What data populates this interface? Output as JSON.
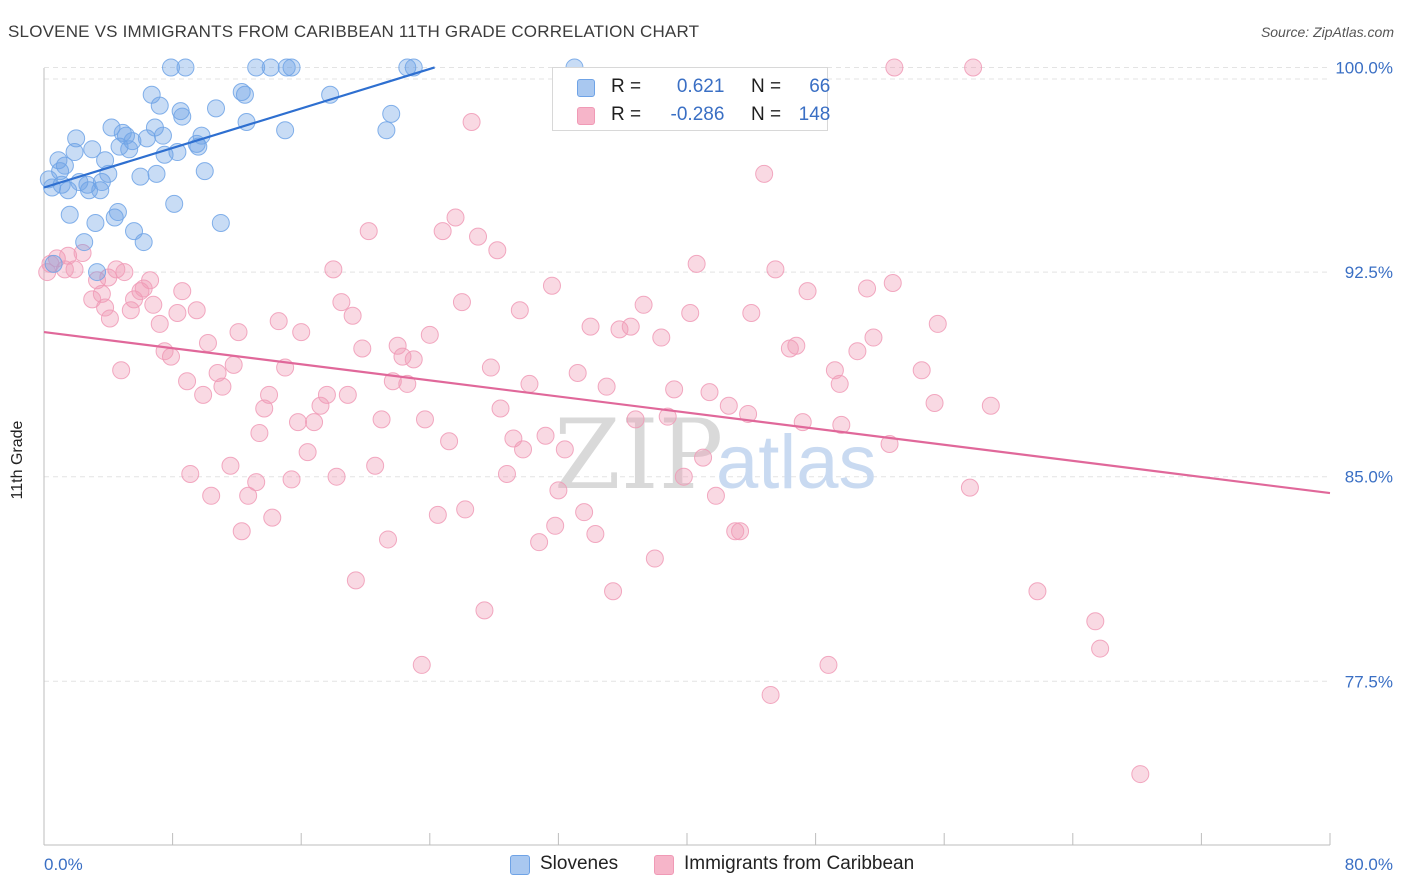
{
  "header": {
    "title": "SLOVENE VS IMMIGRANTS FROM CARIBBEAN 11TH GRADE CORRELATION CHART",
    "source": "Source: ZipAtlas.com"
  },
  "watermark": {
    "zip": "ZIP",
    "atlas": "atlas"
  },
  "legend": {
    "rows": [
      {
        "r_label": "R =",
        "r_value": "0.621",
        "n_label": "N =",
        "n_value": "66",
        "color": "#a9c8f0"
      },
      {
        "r_label": "R =",
        "r_value": "-0.286",
        "n_label": "N =",
        "n_value": "148",
        "color": "#f6b5c9"
      }
    ],
    "bottom": [
      {
        "label": "Slovenes",
        "color": "#a9c8f0"
      },
      {
        "label": "Immigrants from Caribbean",
        "color": "#f6b5c9"
      }
    ]
  },
  "chart_data": {
    "type": "scatter",
    "title": "SLOVENE VS IMMIGRANTS FROM CARIBBEAN 11TH GRADE CORRELATION CHART",
    "xlabel": "",
    "ylabel": "11th Grade",
    "xlim": [
      0,
      80
    ],
    "ylim": [
      71.5,
      100.2
    ],
    "x_tick_labels": [
      "0.0%",
      "80.0%"
    ],
    "y_ticks": [
      77.5,
      85.0,
      92.5,
      100.0
    ],
    "y_tick_labels": [
      "77.5%",
      "85.0%",
      "92.5%",
      "100.0%"
    ],
    "grid": true,
    "legend_position": "top-center",
    "colors": {
      "slovenes": "#6fa3e6",
      "slovenes_line": "#2e6fd0",
      "caribbean": "#f09ab6",
      "caribbean_line": "#e0689a",
      "tick_text": "#3a6fc4"
    },
    "series": [
      {
        "name": "Slovenes",
        "trend": {
          "x": [
            0.0,
            24.3
          ],
          "y": [
            95.6,
            100.0
          ]
        },
        "points": [
          [
            0.3,
            95.9
          ],
          [
            0.5,
            95.6
          ],
          [
            0.6,
            92.8
          ],
          [
            0.9,
            96.6
          ],
          [
            1.0,
            96.2
          ],
          [
            1.1,
            95.7
          ],
          [
            1.3,
            96.4
          ],
          [
            1.5,
            95.5
          ],
          [
            1.6,
            94.6
          ],
          [
            1.9,
            96.9
          ],
          [
            2.0,
            97.4
          ],
          [
            2.2,
            95.8
          ],
          [
            2.5,
            93.6
          ],
          [
            2.7,
            95.7
          ],
          [
            2.8,
            95.5
          ],
          [
            3.0,
            97.0
          ],
          [
            3.2,
            94.3
          ],
          [
            3.3,
            92.5
          ],
          [
            3.5,
            95.5
          ],
          [
            3.6,
            95.8
          ],
          [
            3.8,
            96.6
          ],
          [
            4.0,
            96.1
          ],
          [
            4.2,
            97.8
          ],
          [
            4.4,
            94.5
          ],
          [
            4.6,
            94.7
          ],
          [
            4.7,
            97.1
          ],
          [
            4.9,
            97.6
          ],
          [
            5.1,
            97.5
          ],
          [
            5.3,
            97.0
          ],
          [
            5.5,
            97.3
          ],
          [
            5.6,
            94.0
          ],
          [
            6.0,
            96.0
          ],
          [
            6.2,
            93.6
          ],
          [
            6.4,
            97.4
          ],
          [
            6.7,
            99.0
          ],
          [
            6.9,
            97.8
          ],
          [
            7.0,
            96.1
          ],
          [
            7.2,
            98.6
          ],
          [
            7.4,
            97.5
          ],
          [
            7.5,
            96.8
          ],
          [
            7.9,
            100.0
          ],
          [
            8.1,
            95.0
          ],
          [
            8.3,
            96.9
          ],
          [
            8.5,
            98.4
          ],
          [
            8.6,
            98.2
          ],
          [
            8.8,
            100.0
          ],
          [
            9.6,
            97.1
          ],
          [
            9.8,
            97.5
          ],
          [
            10.0,
            96.2
          ],
          [
            10.7,
            98.5
          ],
          [
            11.0,
            94.3
          ],
          [
            12.3,
            99.1
          ],
          [
            12.5,
            99.0
          ],
          [
            12.6,
            98.0
          ],
          [
            13.2,
            100.0
          ],
          [
            14.1,
            100.0
          ],
          [
            15.0,
            97.7
          ],
          [
            15.1,
            100.0
          ],
          [
            15.4,
            100.0
          ],
          [
            17.8,
            99.0
          ],
          [
            21.3,
            97.7
          ],
          [
            21.6,
            98.3
          ],
          [
            22.6,
            100.0
          ],
          [
            23.0,
            100.0
          ],
          [
            33.0,
            100.0
          ],
          [
            9.5,
            97.2
          ]
        ]
      },
      {
        "name": "Immigrants from Caribbean",
        "trend": {
          "x": [
            0.0,
            80.0
          ],
          "y": [
            90.3,
            84.4
          ]
        },
        "points": [
          [
            0.2,
            92.5
          ],
          [
            0.4,
            92.8
          ],
          [
            0.8,
            93.0
          ],
          [
            1.3,
            92.6
          ],
          [
            1.5,
            93.1
          ],
          [
            1.9,
            92.6
          ],
          [
            2.4,
            93.2
          ],
          [
            3.0,
            91.5
          ],
          [
            3.3,
            92.2
          ],
          [
            3.6,
            91.7
          ],
          [
            3.8,
            91.2
          ],
          [
            4.1,
            90.8
          ],
          [
            4.5,
            92.6
          ],
          [
            4.8,
            88.9
          ],
          [
            5.0,
            92.5
          ],
          [
            5.4,
            91.1
          ],
          [
            5.6,
            91.5
          ],
          [
            6.0,
            91.8
          ],
          [
            6.2,
            91.9
          ],
          [
            6.6,
            92.2
          ],
          [
            6.8,
            91.3
          ],
          [
            7.2,
            90.6
          ],
          [
            7.5,
            89.6
          ],
          [
            7.9,
            89.4
          ],
          [
            8.3,
            91.0
          ],
          [
            8.6,
            91.8
          ],
          [
            8.9,
            88.5
          ],
          [
            9.1,
            85.1
          ],
          [
            9.5,
            91.1
          ],
          [
            9.9,
            88.0
          ],
          [
            10.2,
            89.9
          ],
          [
            10.4,
            84.3
          ],
          [
            10.8,
            88.8
          ],
          [
            11.1,
            88.3
          ],
          [
            11.6,
            85.4
          ],
          [
            11.8,
            89.1
          ],
          [
            12.1,
            90.3
          ],
          [
            12.3,
            83.0
          ],
          [
            12.7,
            84.3
          ],
          [
            13.2,
            84.8
          ],
          [
            13.4,
            86.6
          ],
          [
            13.7,
            87.5
          ],
          [
            14.0,
            88.0
          ],
          [
            14.2,
            83.5
          ],
          [
            14.6,
            90.7
          ],
          [
            15.0,
            89.0
          ],
          [
            15.4,
            84.9
          ],
          [
            15.8,
            87.0
          ],
          [
            16.0,
            90.3
          ],
          [
            16.4,
            85.9
          ],
          [
            16.8,
            87.0
          ],
          [
            17.2,
            87.6
          ],
          [
            17.6,
            88.0
          ],
          [
            18.0,
            92.6
          ],
          [
            18.2,
            85.0
          ],
          [
            18.5,
            91.4
          ],
          [
            18.9,
            88.0
          ],
          [
            19.2,
            90.9
          ],
          [
            19.4,
            81.2
          ],
          [
            19.8,
            89.7
          ],
          [
            20.2,
            94.0
          ],
          [
            20.6,
            85.4
          ],
          [
            21.0,
            87.1
          ],
          [
            21.4,
            82.7
          ],
          [
            21.7,
            88.5
          ],
          [
            22.0,
            89.8
          ],
          [
            22.3,
            89.4
          ],
          [
            22.6,
            88.4
          ],
          [
            23.0,
            89.3
          ],
          [
            23.5,
            78.1
          ],
          [
            23.7,
            87.1
          ],
          [
            24.0,
            90.2
          ],
          [
            24.5,
            83.6
          ],
          [
            24.8,
            94.0
          ],
          [
            25.2,
            86.3
          ],
          [
            25.6,
            94.5
          ],
          [
            26.0,
            91.4
          ],
          [
            26.2,
            83.8
          ],
          [
            26.6,
            98.0
          ],
          [
            27.0,
            93.8
          ],
          [
            27.4,
            80.1
          ],
          [
            27.8,
            89.0
          ],
          [
            28.2,
            93.3
          ],
          [
            28.4,
            87.5
          ],
          [
            28.8,
            85.1
          ],
          [
            29.2,
            86.4
          ],
          [
            29.6,
            91.1
          ],
          [
            29.8,
            86.0
          ],
          [
            30.2,
            88.4
          ],
          [
            30.8,
            82.6
          ],
          [
            31.2,
            86.5
          ],
          [
            31.6,
            92.0
          ],
          [
            31.8,
            83.2
          ],
          [
            32.0,
            84.5
          ],
          [
            32.4,
            86.0
          ],
          [
            33.2,
            88.8
          ],
          [
            33.6,
            83.7
          ],
          [
            34.0,
            90.5
          ],
          [
            34.3,
            82.9
          ],
          [
            35.0,
            88.3
          ],
          [
            35.4,
            80.8
          ],
          [
            35.8,
            90.4
          ],
          [
            36.5,
            90.5
          ],
          [
            36.8,
            87.1
          ],
          [
            37.3,
            91.3
          ],
          [
            38.0,
            82.0
          ],
          [
            38.4,
            90.1
          ],
          [
            38.8,
            87.2
          ],
          [
            39.2,
            88.2
          ],
          [
            39.8,
            85.0
          ],
          [
            40.2,
            91.0
          ],
          [
            40.6,
            92.8
          ],
          [
            41.0,
            85.7
          ],
          [
            41.4,
            88.1
          ],
          [
            41.8,
            84.3
          ],
          [
            42.6,
            87.6
          ],
          [
            43.0,
            83.0
          ],
          [
            43.3,
            83.0
          ],
          [
            43.8,
            87.3
          ],
          [
            44.0,
            91.0
          ],
          [
            44.8,
            96.1
          ],
          [
            45.2,
            77.0
          ],
          [
            45.5,
            92.6
          ],
          [
            46.4,
            89.7
          ],
          [
            46.8,
            89.8
          ],
          [
            47.2,
            87.0
          ],
          [
            47.5,
            91.8
          ],
          [
            48.8,
            78.1
          ],
          [
            49.2,
            88.9
          ],
          [
            49.5,
            88.4
          ],
          [
            49.6,
            86.9
          ],
          [
            50.6,
            89.6
          ],
          [
            51.2,
            91.9
          ],
          [
            51.6,
            90.1
          ],
          [
            52.6,
            86.2
          ],
          [
            52.8,
            92.1
          ],
          [
            52.9,
            100.0
          ],
          [
            54.6,
            88.9
          ],
          [
            55.6,
            90.6
          ],
          [
            55.4,
            87.7
          ],
          [
            57.8,
            100.0
          ],
          [
            57.6,
            84.6
          ],
          [
            58.9,
            87.6
          ],
          [
            61.8,
            80.8
          ],
          [
            65.4,
            79.7
          ],
          [
            65.7,
            78.7
          ],
          [
            68.2,
            74.1
          ],
          [
            4.0,
            92.3
          ]
        ]
      }
    ]
  }
}
